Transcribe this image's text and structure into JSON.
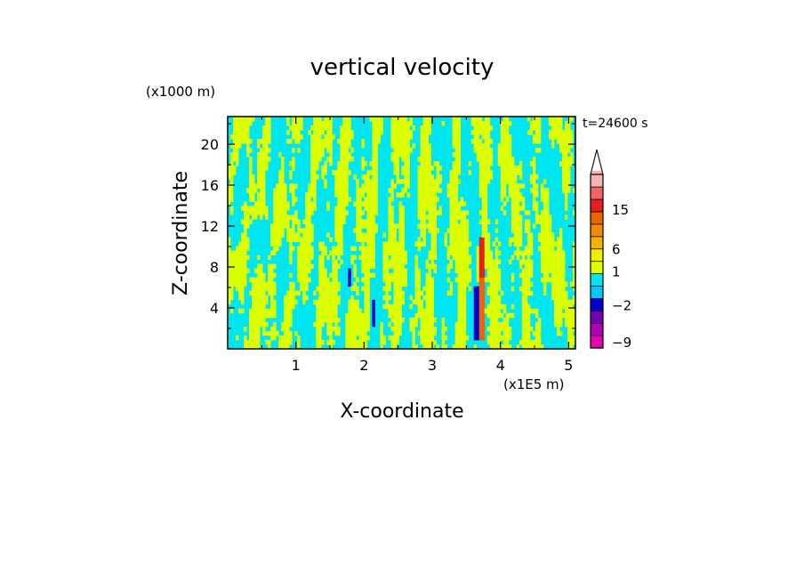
{
  "chart_data": {
    "type": "heatmap",
    "title": "vertical velocity",
    "xlabel": "X-coordinate",
    "ylabel": "Z-coordinate",
    "x_unit": "(x1E5 m)",
    "y_unit": "(x1000 m)",
    "time_label": "t=24600 s",
    "xlim": [
      0.0,
      5.1
    ],
    "ylim": [
      0.0,
      22.7
    ],
    "x_ticks": [
      "1",
      "2",
      "3",
      "4",
      "5"
    ],
    "x_tick_values": [
      1,
      2,
      3,
      4,
      5
    ],
    "y_ticks": [
      "4",
      "8",
      "12",
      "16",
      "20"
    ],
    "y_tick_values": [
      4,
      8,
      12,
      16,
      20
    ],
    "grid": false,
    "colorbar": {
      "labels": [
        "15",
        "6",
        "1",
        "−2",
        "−9"
      ],
      "label_values": [
        15,
        6,
        1,
        -2,
        -9
      ],
      "levels": [
        {
          "from": -12,
          "to": -9,
          "color": "#e600b4"
        },
        {
          "from": -9,
          "to": -6,
          "color": "#b400b4"
        },
        {
          "from": -6,
          "to": -4,
          "color": "#7800b4"
        },
        {
          "from": -4,
          "to": -2,
          "color": "#0000c8"
        },
        {
          "from": -2,
          "to": -1,
          "color": "#00c8ff"
        },
        {
          "from": -1,
          "to": 0,
          "color": "#00e6f0"
        },
        {
          "from": 0,
          "to": 1,
          "color": "#dcff00"
        },
        {
          "from": 1,
          "to": 2,
          "color": "#f0f000"
        },
        {
          "from": 2,
          "to": 4,
          "color": "#f0b400"
        },
        {
          "from": 4,
          "to": 6,
          "color": "#f08c00"
        },
        {
          "from": 6,
          "to": 9,
          "color": "#f06400"
        },
        {
          "from": 9,
          "to": 12,
          "color": "#e61e1e"
        },
        {
          "from": 12,
          "to": 15,
          "color": "#f06464"
        },
        {
          "from": 15,
          "to": 20,
          "color": "#f5b4b4"
        }
      ],
      "extend": "max"
    },
    "field_description": {
      "dominant_colors": [
        "#00e6f0",
        "#dcff00"
      ],
      "updraft_core": {
        "x": 3.72,
        "z_range": [
          1,
          11
        ],
        "max_w": 9
      },
      "downdraft_core": {
        "x": 3.65,
        "z_range": [
          1,
          6
        ],
        "min_w": -2
      }
    }
  }
}
